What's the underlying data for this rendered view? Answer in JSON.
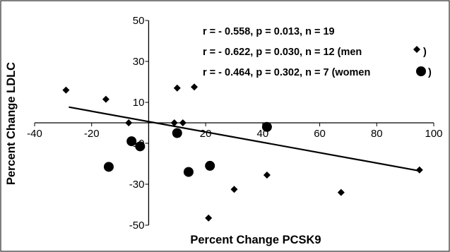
{
  "chart_data": {
    "type": "scatter",
    "title": "",
    "xlabel": "Percent Change PCSK9",
    "ylabel": "Percent Change LDLC",
    "xlim": [
      -40,
      100
    ],
    "ylim": [
      -50,
      50
    ],
    "x_ticks": [
      -40,
      -20,
      0,
      20,
      40,
      60,
      80,
      100
    ],
    "x_tick_labels": [
      "-40",
      "-20",
      "",
      "20",
      "40",
      "60",
      "80",
      "100"
    ],
    "y_ticks": [
      50,
      30,
      10,
      -10,
      -30,
      -50
    ],
    "y_tick_labels": [
      "50",
      "30",
      "10",
      "-10",
      "-30",
      "-50"
    ],
    "grid": false,
    "annotations": [
      "r = - 0.558, p = 0.013, n = 19",
      "r = - 0.622, p = 0.030, n = 12 (men",
      "r = - 0.464, p = 0.302, n = 7 (women"
    ],
    "annotation_closing": ")",
    "series": [
      {
        "marker": "diamond",
        "color": "#000000",
        "points": [
          {
            "x": -29,
            "y": 16
          },
          {
            "x": -15,
            "y": 11.5
          },
          {
            "x": -7,
            "y": 0
          },
          {
            "x": 9,
            "y": 0
          },
          {
            "x": 10,
            "y": 17
          },
          {
            "x": 12,
            "y": 0
          },
          {
            "x": 16,
            "y": 17.5
          },
          {
            "x": 21,
            "y": -46.5
          },
          {
            "x": 30,
            "y": -32.5
          },
          {
            "x": 41.5,
            "y": -25.5
          },
          {
            "x": 67.5,
            "y": -34
          },
          {
            "x": 95,
            "y": -23
          }
        ]
      },
      {
        "marker": "circle",
        "color": "#000000",
        "points": [
          {
            "x": -14,
            "y": -21.5
          },
          {
            "x": -6,
            "y": -9
          },
          {
            "x": -3,
            "y": -11.5
          },
          {
            "x": 10,
            "y": -5
          },
          {
            "x": 14,
            "y": -24
          },
          {
            "x": 21.5,
            "y": -21
          },
          {
            "x": 41.5,
            "y": -2
          }
        ]
      }
    ],
    "trendline": {
      "x": [
        -28,
        95
      ],
      "y": [
        7.68,
        -23.46
      ]
    }
  }
}
